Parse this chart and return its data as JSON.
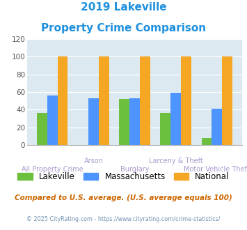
{
  "title_line1": "2019 Lakeville",
  "title_line2": "Property Crime Comparison",
  "title_color": "#1e90dd",
  "categories": [
    "All Property Crime",
    "Arson",
    "Burglary",
    "Larceny & Theft",
    "Motor Vehicle Theft"
  ],
  "lakeville": [
    36,
    0,
    52,
    36,
    8
  ],
  "massachusetts": [
    56,
    53,
    53,
    59,
    41
  ],
  "national": [
    100,
    100,
    100,
    100,
    100
  ],
  "bar_colors": [
    "#6dbf3e",
    "#4d94ff",
    "#f5a623"
  ],
  "ylim": [
    0,
    120
  ],
  "yticks": [
    0,
    20,
    40,
    60,
    80,
    100,
    120
  ],
  "bg_color": "#dce9f0",
  "legend_labels": [
    "Lakeville",
    "Massachusetts",
    "National"
  ],
  "top_labels": [
    "",
    "Arson",
    "",
    "Larceny & Theft",
    ""
  ],
  "bottom_labels": [
    "All Property Crime",
    "",
    "Burglary",
    "",
    "Motor Vehicle Theft"
  ],
  "footnote1": "Compared to U.S. average. (U.S. average equals 100)",
  "footnote2": "© 2025 CityRating.com - https://www.cityrating.com/crime-statistics/",
  "footnote1_color": "#cc6600",
  "footnote2_color": "#7090b0",
  "xlabel_color": "#aa99cc"
}
